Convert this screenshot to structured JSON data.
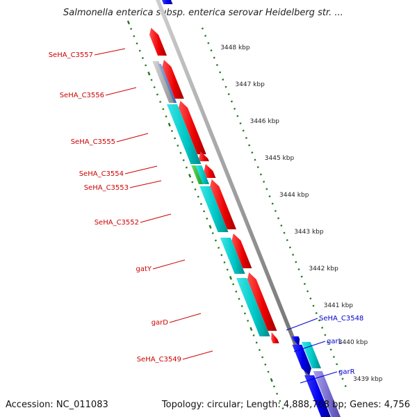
{
  "title": "Salmonella enterica subsp. enterica serovar Heidelberg str. ...",
  "footer": {
    "accession": "Accession: NC_011083",
    "summary": "Topology: circular; Length: 4,888,768 bp; Genes: 4,756"
  },
  "colors": {
    "reverse_label": "#cc0000",
    "forward_label": "#0000cc",
    "cds_reverse": "#ee0000",
    "cds_forward": "#0000ee",
    "cog_cyan": "#00c8c8",
    "cog_green": "#33cc33",
    "cog_gray": "#a8a8a8",
    "cog_steelblue": "#5a86c8",
    "cog_lavender": "#7a6fd0",
    "backbone": "#888888",
    "tick": "#1a7a1a"
  },
  "kbp_markers": [
    "3448 kbp",
    "3447 kbp",
    "3446 kbp",
    "3445 kbp",
    "3444 kbp",
    "3443 kbp",
    "3442 kbp",
    "3441 kbp",
    "3440 kbp",
    "3439 kbp"
  ],
  "reverse_genes": [
    {
      "name": "SeHA_C3557"
    },
    {
      "name": "SeHA_C3556"
    },
    {
      "name": "SeHA_C3555"
    },
    {
      "name": "SeHA_C3554"
    },
    {
      "name": "SeHA_C3553"
    },
    {
      "name": "SeHA_C3552"
    },
    {
      "name": "gatY"
    },
    {
      "name": "garD"
    },
    {
      "name": "SeHA_C3549"
    }
  ],
  "forward_genes": [
    {
      "name": "SeHA_C3548"
    },
    {
      "name": "garL"
    },
    {
      "name": "garR"
    }
  ]
}
